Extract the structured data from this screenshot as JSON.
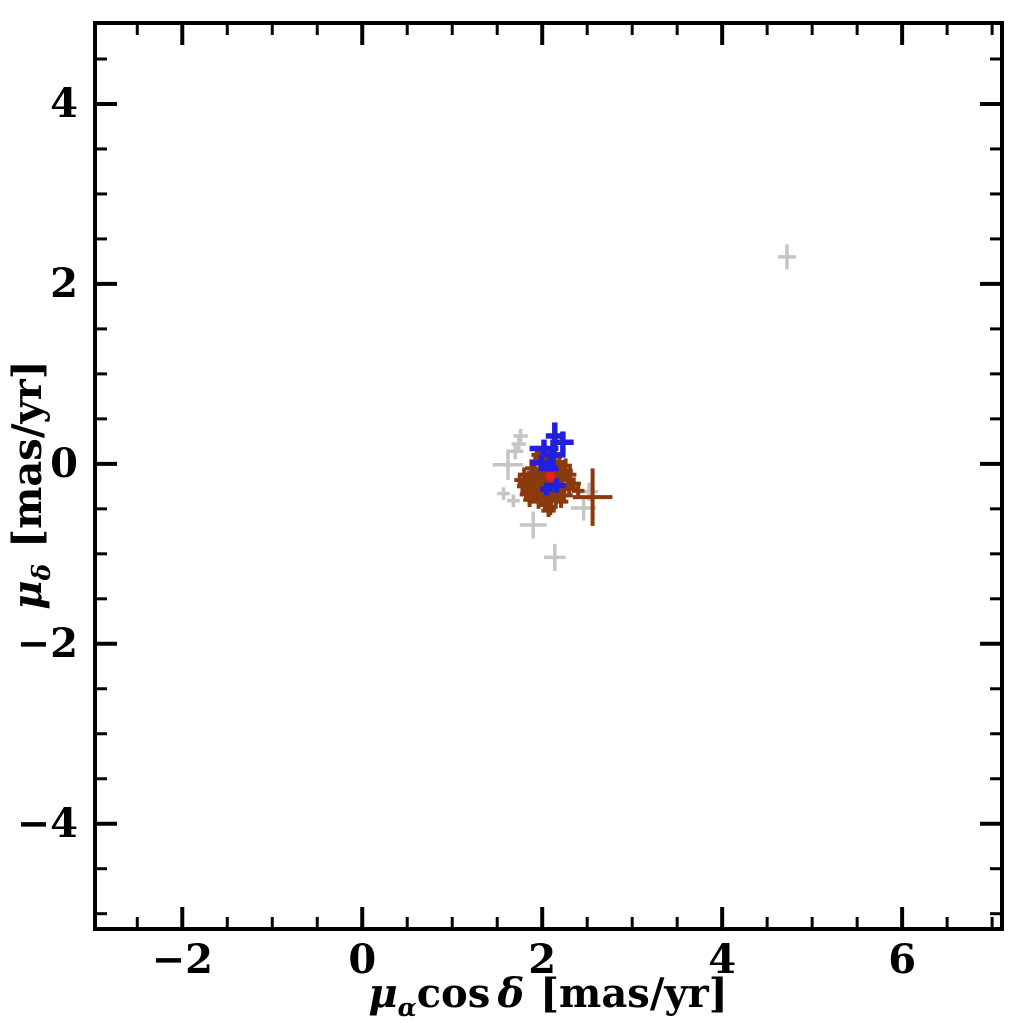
{
  "chart_data": {
    "type": "scatter",
    "title": "",
    "xlabel": "μ_α cos δ [mas/yr]",
    "ylabel": "μ_δ [mas/yr]",
    "xlabel_parts": {
      "mu": "μ",
      "sub": "α",
      "cos": "cos",
      "delta": "δ",
      "units": "[mas/yr]"
    },
    "ylabel_parts": {
      "mu": "μ",
      "sub": "δ",
      "units": "[mas/yr]"
    },
    "xlim": [
      -2.97,
      7.11
    ],
    "ylim": [
      -5.17,
      4.9
    ],
    "x_major_ticks": [
      -2,
      0,
      2,
      4,
      6
    ],
    "x_tick_labels": [
      "−2",
      "0",
      "2",
      "4",
      "6"
    ],
    "y_major_ticks": [
      4,
      2,
      0,
      -2,
      -4
    ],
    "y_tick_labels": [
      "4",
      "2",
      "0",
      "−2",
      "−4"
    ],
    "minor_tick_step": 0.5,
    "grid": false,
    "legend": "none",
    "background": "#ffffff",
    "axis_color": "#000000",
    "point_format": [
      "x",
      "y",
      "ex",
      "ey"
    ],
    "series": [
      {
        "name": "gray_crosses",
        "color": "#c5c5c5",
        "marker": "error_cross",
        "stroke_width": 3.5,
        "points": [
          [
            4.72,
            2.3,
            0.1,
            0.14
          ],
          [
            1.62,
            -0.01,
            0.17,
            0.17
          ],
          [
            1.7,
            0.14,
            0.09,
            0.09
          ],
          [
            1.76,
            0.31,
            0.08,
            0.08
          ],
          [
            1.74,
            0.22,
            0.08,
            0.08
          ],
          [
            1.57,
            -0.33,
            0.07,
            0.07
          ],
          [
            1.68,
            -0.41,
            0.07,
            0.07
          ],
          [
            1.9,
            -0.68,
            0.15,
            0.15
          ],
          [
            2.46,
            -0.49,
            0.14,
            0.14
          ],
          [
            2.52,
            -0.31,
            0.1,
            0.1
          ],
          [
            2.14,
            -1.04,
            0.12,
            0.15
          ]
        ]
      },
      {
        "name": "brown_crosses",
        "color": "#8b3a0d",
        "marker": "error_cross",
        "stroke_width": 4,
        "points": [
          [
            1.98,
            -0.08,
            0.1,
            0.12
          ],
          [
            2.08,
            -0.12,
            0.14,
            0.1
          ],
          [
            2.16,
            -0.06,
            0.08,
            0.09
          ],
          [
            2.02,
            -0.22,
            0.12,
            0.14
          ],
          [
            1.92,
            -0.16,
            0.09,
            0.08
          ],
          [
            2.1,
            -0.25,
            0.11,
            0.13
          ],
          [
            2.2,
            -0.15,
            0.1,
            0.08
          ],
          [
            1.88,
            -0.05,
            0.07,
            0.1
          ],
          [
            2.05,
            0.02,
            0.09,
            0.08
          ],
          [
            2.14,
            0.08,
            0.08,
            0.07
          ],
          [
            1.95,
            -0.3,
            0.12,
            0.1
          ],
          [
            2.06,
            -0.35,
            0.1,
            0.12
          ],
          [
            2.18,
            -0.3,
            0.09,
            0.1
          ],
          [
            1.85,
            -0.22,
            0.08,
            0.09
          ],
          [
            2.0,
            -0.14,
            0.15,
            0.11
          ],
          [
            2.12,
            -0.18,
            0.1,
            0.14
          ],
          [
            2.25,
            -0.08,
            0.09,
            0.08
          ],
          [
            1.9,
            -0.35,
            0.1,
            0.09
          ],
          [
            2.03,
            -0.44,
            0.09,
            0.1
          ],
          [
            2.15,
            -0.4,
            0.11,
            0.09
          ],
          [
            1.8,
            -0.12,
            0.07,
            0.08
          ],
          [
            2.08,
            0.1,
            0.08,
            0.09
          ],
          [
            1.97,
            0.06,
            0.07,
            0.07
          ],
          [
            2.22,
            -0.25,
            0.12,
            0.1
          ],
          [
            1.93,
            -0.24,
            0.09,
            0.11
          ],
          [
            2.05,
            -0.18,
            0.13,
            0.15
          ],
          [
            2.28,
            -0.18,
            0.08,
            0.09
          ],
          [
            1.87,
            -0.3,
            0.09,
            0.08
          ],
          [
            2.1,
            -0.02,
            0.1,
            0.09
          ],
          [
            2.0,
            -0.38,
            0.08,
            0.1
          ],
          [
            2.17,
            -0.12,
            0.09,
            0.11
          ],
          [
            1.83,
            -0.18,
            0.07,
            0.07
          ],
          [
            2.07,
            -0.28,
            0.11,
            0.09
          ],
          [
            2.13,
            -0.33,
            0.09,
            0.1
          ],
          [
            1.96,
            -0.42,
            0.08,
            0.08
          ],
          [
            2.24,
            -0.35,
            0.1,
            0.09
          ],
          [
            1.78,
            -0.25,
            0.06,
            0.07
          ],
          [
            2.02,
            0.14,
            0.07,
            0.08
          ],
          [
            2.19,
            0.02,
            0.08,
            0.07
          ],
          [
            1.91,
            -0.1,
            0.08,
            0.09
          ],
          [
            2.3,
            -0.28,
            0.09,
            0.08
          ],
          [
            2.09,
            -0.48,
            0.08,
            0.09
          ],
          [
            1.86,
            -0.4,
            0.07,
            0.08
          ],
          [
            2.26,
            -0.02,
            0.07,
            0.08
          ],
          [
            1.99,
            -0.26,
            0.1,
            0.12
          ],
          [
            2.11,
            -0.1,
            0.12,
            0.1
          ],
          [
            2.35,
            -0.22,
            0.08,
            0.07
          ],
          [
            1.75,
            -0.18,
            0.06,
            0.06
          ],
          [
            2.04,
            -0.06,
            0.09,
            0.1
          ],
          [
            2.21,
            -0.42,
            0.08,
            0.07
          ],
          [
            1.94,
            0.1,
            0.06,
            0.07
          ],
          [
            2.31,
            -0.12,
            0.07,
            0.08
          ],
          [
            1.82,
            -0.34,
            0.07,
            0.07
          ],
          [
            2.4,
            -0.3,
            0.07,
            0.08
          ],
          [
            2.07,
            -0.52,
            0.08,
            0.07
          ],
          [
            2.56,
            -0.37,
            0.22,
            0.32
          ]
        ]
      },
      {
        "name": "blue_crosses",
        "color": "#2020dd",
        "marker": "error_cross",
        "stroke_width": 5.5,
        "points": [
          [
            2.14,
            0.31,
            0.1,
            0.15
          ],
          [
            2.23,
            0.24,
            0.12,
            0.12
          ],
          [
            2.02,
            0.17,
            0.16,
            0.1
          ],
          [
            2.12,
            0.1,
            0.14,
            0.17
          ],
          [
            1.99,
            0.01,
            0.12,
            0.09
          ],
          [
            2.09,
            -0.05,
            0.09,
            0.12
          ],
          [
            2.16,
            -0.24,
            0.1,
            0.08
          ],
          [
            2.05,
            -0.28,
            0.07,
            0.07
          ]
        ]
      },
      {
        "name": "red_dot",
        "color": "#e62020",
        "marker": "dot",
        "radius": 5,
        "points": [
          [
            2.09,
            -0.14
          ]
        ]
      }
    ]
  }
}
